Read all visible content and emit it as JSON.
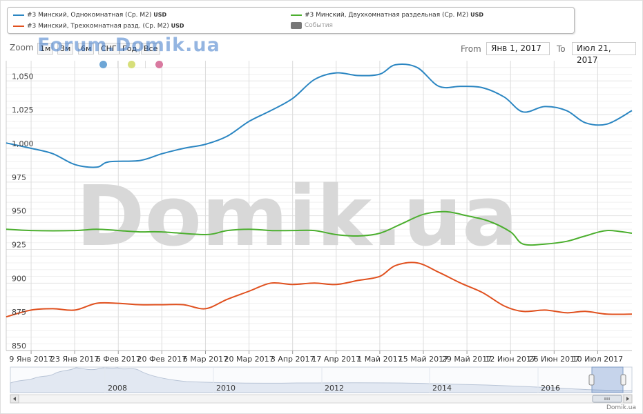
{
  "legend": [
    {
      "label": "#3 Минский, Однокомнатная (Ср. М2)",
      "unit": "USD",
      "color": "#2b86c2"
    },
    {
      "label": "#3 Минский, Двухкомнатная раздельная (Ср. М2)",
      "unit": "USD",
      "color": "#4caf2f"
    },
    {
      "label": "#3 Минский, Трехкомнатная разд. (Ср. М2)",
      "unit": "USD",
      "color": "#e0501e"
    },
    {
      "label": "События",
      "unit": "",
      "color": "#777777"
    }
  ],
  "toolbar": {
    "zoom_label": "Zoom",
    "zoom_buttons": [
      "1м",
      "3м",
      "6м",
      "СНГ",
      "Год",
      "Все"
    ],
    "from_label": "From",
    "from_value": "Янв 1, 2017",
    "to_label": "To",
    "to_value": "Июл 21, 2017"
  },
  "watermark": {
    "small": "Forum.Domik.ua",
    "large": "Domik.ua"
  },
  "event_dot_colors": [
    "#6ea6d6",
    "#d7df7a",
    "#d97aa0"
  ],
  "credit": "Domik.ua",
  "chart_data": {
    "type": "line",
    "xlabel": "",
    "ylabel": "",
    "ylim": [
      850,
      1065
    ],
    "yticks": [
      850,
      875,
      900,
      925,
      950,
      975,
      1000,
      1025,
      1050
    ],
    "ytick_labels": [
      "850",
      "875",
      "900",
      "925",
      "950",
      "975",
      "1,000",
      "1,025",
      "1,050"
    ],
    "xlim": [
      "2017-01-01",
      "2017-07-21"
    ],
    "xtick_labels": [
      "9 Янв 2017",
      "23 Янв 2017",
      "6 Фев 2017",
      "20 Фев 2017",
      "6 Мар 2017",
      "20 Мар 2017",
      "3 Апр 2017",
      "17 Апр 2017",
      "1 Май 2017",
      "15 Май 2017",
      "29 Май 2017",
      "12 Июн 2017",
      "26 Июн 2017",
      "10 Июл 2017"
    ],
    "xtick_dates": [
      "2017-01-09",
      "2017-01-23",
      "2017-02-06",
      "2017-02-20",
      "2017-03-06",
      "2017-03-20",
      "2017-04-03",
      "2017-04-17",
      "2017-05-01",
      "2017-05-15",
      "2017-05-29",
      "2017-06-12",
      "2017-06-26",
      "2017-07-10"
    ],
    "grid": true,
    "series": [
      {
        "name": "#3 Минский, Однокомнатная (Ср. М2)",
        "color": "#2b86c2",
        "x": [
          "2017-01-01",
          "2017-01-09",
          "2017-01-16",
          "2017-01-23",
          "2017-01-30",
          "2017-02-03",
          "2017-02-13",
          "2017-02-20",
          "2017-02-27",
          "2017-03-06",
          "2017-03-13",
          "2017-03-20",
          "2017-03-27",
          "2017-04-03",
          "2017-04-10",
          "2017-04-17",
          "2017-04-24",
          "2017-05-01",
          "2017-05-06",
          "2017-05-13",
          "2017-05-20",
          "2017-05-27",
          "2017-06-03",
          "2017-06-10",
          "2017-06-16",
          "2017-06-23",
          "2017-06-30",
          "2017-07-06",
          "2017-07-13",
          "2017-07-21"
        ],
        "values": [
          1004,
          1000,
          996,
          988,
          986,
          990,
          991,
          996,
          1000,
          1003,
          1009,
          1020,
          1028,
          1037,
          1051,
          1056,
          1054,
          1055,
          1062,
          1060,
          1046,
          1046,
          1045,
          1038,
          1027,
          1031,
          1028,
          1019,
          1018,
          1028
        ]
      },
      {
        "name": "#3 Минский, Двухкомнатная раздельная (Ср. М2)",
        "color": "#4caf2f",
        "x": [
          "2017-01-01",
          "2017-01-09",
          "2017-01-23",
          "2017-01-30",
          "2017-02-06",
          "2017-02-13",
          "2017-02-20",
          "2017-03-06",
          "2017-03-13",
          "2017-03-20",
          "2017-03-27",
          "2017-04-03",
          "2017-04-10",
          "2017-04-17",
          "2017-04-24",
          "2017-05-01",
          "2017-05-08",
          "2017-05-15",
          "2017-05-22",
          "2017-05-29",
          "2017-06-05",
          "2017-06-12",
          "2017-06-16",
          "2017-06-23",
          "2017-06-30",
          "2017-07-06",
          "2017-07-13",
          "2017-07-21"
        ],
        "values": [
          940,
          939,
          939,
          940,
          939,
          938,
          938,
          936,
          939,
          940,
          939,
          939,
          939,
          936,
          935,
          937,
          944,
          951,
          953,
          950,
          946,
          938,
          929,
          929,
          931,
          935,
          939,
          937
        ]
      },
      {
        "name": "#3 Минский, Трехкомнатная разд. (Ср. М2)",
        "color": "#e0501e",
        "x": [
          "2017-01-01",
          "2017-01-09",
          "2017-01-16",
          "2017-01-23",
          "2017-01-30",
          "2017-02-06",
          "2017-02-13",
          "2017-02-20",
          "2017-02-27",
          "2017-03-06",
          "2017-03-13",
          "2017-03-20",
          "2017-03-27",
          "2017-04-03",
          "2017-04-10",
          "2017-04-17",
          "2017-04-24",
          "2017-05-01",
          "2017-05-06",
          "2017-05-13",
          "2017-05-20",
          "2017-05-27",
          "2017-06-03",
          "2017-06-10",
          "2017-06-16",
          "2017-06-23",
          "2017-06-30",
          "2017-07-06",
          "2017-07-13",
          "2017-07-21"
        ],
        "values": [
          875,
          880,
          881,
          880,
          885,
          885,
          884,
          884,
          884,
          881,
          888,
          894,
          900,
          899,
          900,
          899,
          902,
          905,
          913,
          915,
          908,
          900,
          893,
          883,
          879,
          880,
          878,
          879,
          877,
          877
        ]
      }
    ],
    "navigator": {
      "year_labels": [
        "2008",
        "2010",
        "2012",
        "2014",
        "2016"
      ]
    }
  }
}
